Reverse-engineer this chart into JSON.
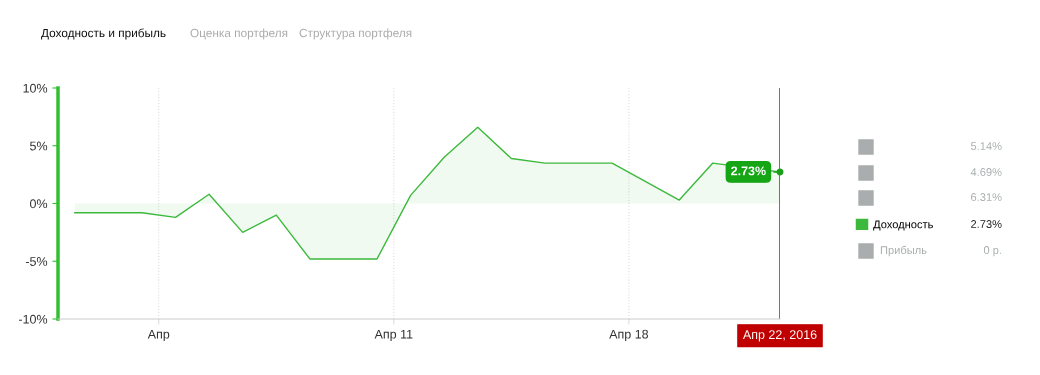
{
  "chart_data": {
    "type": "area",
    "title": "Доходность и прибыль",
    "x": [
      "2016-04-01T12:00",
      "2016-04-02T12:00",
      "2016-04-03T12:00",
      "2016-04-04T12:00",
      "2016-04-05T12:00",
      "2016-04-06T12:00",
      "2016-04-07T12:00",
      "2016-04-08T12:00",
      "2016-04-09T12:00",
      "2016-04-10T12:00",
      "2016-04-11T12:00",
      "2016-04-12T12:00",
      "2016-04-13T12:00",
      "2016-04-14T12:00",
      "2016-04-15T12:00",
      "2016-04-16T12:00",
      "2016-04-17T12:00",
      "2016-04-19T12:00",
      "2016-04-20T12:00",
      "2016-04-22T12:00"
    ],
    "series": [
      {
        "name": "Доходность",
        "color": "#3cb93c",
        "values": [
          -0.8,
          -0.8,
          -0.8,
          -1.2,
          0.8,
          -2.5,
          -1.0,
          -4.8,
          -4.8,
          -4.8,
          0.7,
          4.0,
          6.6,
          3.9,
          3.5,
          3.5,
          3.5,
          0.3,
          3.5,
          2.73
        ]
      }
    ],
    "xlim": [
      "2016-04-01",
      "2016-04-22T12:00"
    ],
    "xticks": [
      {
        "value": "2016-04-04",
        "label": "Апр"
      },
      {
        "value": "2016-04-11",
        "label": "Апр 11"
      },
      {
        "value": "2016-04-18",
        "label": "Апр 18"
      }
    ],
    "ylim": [
      -10,
      10
    ],
    "yticks": [
      {
        "value": -10,
        "label": "-10%"
      },
      {
        "value": -5,
        "label": "-5%"
      },
      {
        "value": 0,
        "label": "0%"
      },
      {
        "value": 5,
        "label": "5%"
      },
      {
        "value": 10,
        "label": "10%"
      }
    ],
    "grid": "x",
    "legend": "right",
    "marker": "none",
    "line_style": "solid",
    "ref_lines": [
      {
        "axis": "x",
        "value": "2016-04-22T12:00",
        "label": "Апр 22, 2016",
        "color": "#c00000"
      }
    ],
    "annotations": [
      "Оценка портфеля",
      "Структура портфеля",
      "5.14%",
      "4.69%",
      "6.31%",
      "Прибыль",
      "0 р.",
      "2.73%",
      {
        "text": "2.73%",
        "x": "2016-04-22T12:00",
        "y": 2.73
      }
    ]
  }
}
